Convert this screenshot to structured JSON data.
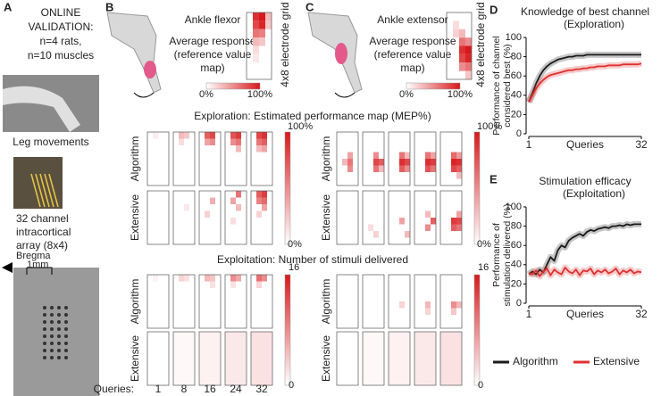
{
  "panel_a": {
    "letter": "A",
    "lines": [
      "ONLINE",
      "VALIDATION:",
      "n=4 rats,",
      "n=10 muscles"
    ],
    "photo_caption": "Leg movements",
    "array_caption": [
      "32 channel",
      "intracortical",
      "array (8x4)"
    ],
    "bregma": "Bregma",
    "scale": "1mm"
  },
  "heatmaps": {
    "exploration_title": "Exploration: Estimated performance map (MEP%)",
    "exploitation_title": "Exploitation: Number of stimuli delivered",
    "row_labels": [
      "Algorithm",
      "Extensive"
    ],
    "queries_label": "Queries:",
    "queries": [
      1,
      8,
      16,
      24,
      32
    ],
    "explore_scale": [
      {
        "value": 0,
        "label": "0%"
      },
      {
        "value": 100,
        "label": "100%"
      }
    ],
    "exploit_scale": [
      0,
      16
    ]
  },
  "panel_b": {
    "letter": "B",
    "muscle": "Ankle flexor",
    "avg": [
      "Average response",
      "(reference value",
      "map)"
    ],
    "grid_label": "4x8 electrode grid",
    "ref_map": [
      [
        0,
        1,
        90
      ],
      [
        0,
        2,
        100
      ],
      [
        1,
        1,
        80
      ],
      [
        1,
        2,
        95
      ],
      [
        2,
        1,
        60
      ],
      [
        2,
        2,
        55
      ],
      [
        3,
        1,
        30
      ],
      [
        3,
        2,
        25
      ],
      [
        0,
        3,
        30
      ],
      [
        1,
        3,
        25
      ],
      [
        4,
        1,
        15
      ],
      [
        5,
        1,
        10
      ]
    ],
    "explore": [
      [
        [
          [
            0,
            1,
            8
          ]
        ],
        [
          [
            0,
            1,
            30
          ],
          [
            0,
            2,
            25
          ],
          [
            1,
            1,
            15
          ]
        ],
        [
          [
            0,
            1,
            70
          ],
          [
            0,
            2,
            80
          ],
          [
            1,
            1,
            40
          ],
          [
            1,
            2,
            50
          ]
        ],
        [
          [
            0,
            1,
            75
          ],
          [
            0,
            2,
            85
          ],
          [
            1,
            1,
            50
          ],
          [
            1,
            2,
            60
          ],
          [
            2,
            2,
            30
          ]
        ],
        [
          [
            0,
            1,
            80
          ],
          [
            0,
            2,
            90
          ],
          [
            1,
            1,
            60
          ],
          [
            1,
            2,
            70
          ],
          [
            2,
            1,
            30
          ],
          [
            2,
            2,
            40
          ]
        ]
      ],
      [
        [],
        [
          [
            2,
            2,
            10
          ]
        ],
        [
          [
            1,
            2,
            35
          ],
          [
            3,
            1,
            20
          ]
        ],
        [
          [
            0,
            2,
            60
          ],
          [
            1,
            1,
            40
          ],
          [
            2,
            2,
            30
          ],
          [
            4,
            1,
            15
          ]
        ],
        [
          [
            0,
            1,
            70
          ],
          [
            0,
            2,
            85
          ],
          [
            1,
            1,
            55
          ],
          [
            1,
            2,
            65
          ],
          [
            2,
            2,
            40
          ],
          [
            3,
            1,
            20
          ]
        ]
      ]
    ],
    "exploit": [
      [
        [
          [
            0,
            1,
            1
          ]
        ],
        [
          [
            0,
            1,
            3
          ],
          [
            0,
            2,
            2
          ]
        ],
        [
          [
            0,
            1,
            5
          ],
          [
            0,
            2,
            4
          ],
          [
            1,
            2,
            2
          ]
        ],
        [
          [
            0,
            1,
            8
          ],
          [
            0,
            2,
            6
          ],
          [
            1,
            1,
            2
          ]
        ],
        [
          [
            0,
            1,
            10
          ],
          [
            0,
            2,
            8
          ],
          [
            1,
            1,
            3
          ]
        ]
      ],
      [
        0,
        0.5,
        1,
        1.5,
        2
      ]
    ]
  },
  "panel_c": {
    "letter": "C",
    "muscle": "Ankle extensor",
    "avg": [
      "Average response",
      "(reference value",
      "map)"
    ],
    "grid_label": "4x8 electrode grid",
    "ref_map": [
      [
        3,
        2,
        60
      ],
      [
        3,
        3,
        50
      ],
      [
        4,
        2,
        90
      ],
      [
        4,
        3,
        100
      ],
      [
        5,
        2,
        80
      ],
      [
        5,
        3,
        95
      ],
      [
        6,
        2,
        50
      ],
      [
        6,
        3,
        60
      ],
      [
        2,
        2,
        30
      ],
      [
        1,
        1,
        15
      ],
      [
        2,
        1,
        20
      ],
      [
        7,
        3,
        25
      ]
    ],
    "explore": [
      [
        [
          [
            4,
            1,
            30
          ],
          [
            4,
            2,
            60
          ],
          [
            3,
            2,
            40
          ],
          [
            5,
            2,
            50
          ]
        ],
        [
          [
            4,
            2,
            80
          ],
          [
            4,
            3,
            70
          ],
          [
            3,
            2,
            50
          ],
          [
            5,
            2,
            60
          ],
          [
            5,
            3,
            30
          ]
        ],
        [
          [
            4,
            2,
            90
          ],
          [
            4,
            3,
            80
          ],
          [
            3,
            2,
            60
          ],
          [
            5,
            2,
            70
          ],
          [
            5,
            3,
            50
          ],
          [
            3,
            3,
            30
          ]
        ],
        [
          [
            4,
            2,
            90
          ],
          [
            4,
            3,
            85
          ],
          [
            3,
            2,
            60
          ],
          [
            5,
            2,
            75
          ],
          [
            5,
            3,
            60
          ],
          [
            3,
            3,
            40
          ]
        ],
        [
          [
            4,
            2,
            95
          ],
          [
            4,
            3,
            90
          ],
          [
            3,
            2,
            65
          ],
          [
            5,
            2,
            80
          ],
          [
            5,
            3,
            70
          ],
          [
            3,
            3,
            45
          ],
          [
            6,
            3,
            30
          ]
        ]
      ],
      [
        [],
        [
          [
            6,
            2,
            20
          ],
          [
            5,
            1,
            15
          ]
        ],
        [
          [
            4,
            2,
            40
          ],
          [
            6,
            3,
            30
          ]
        ],
        [
          [
            4,
            3,
            70
          ],
          [
            5,
            2,
            50
          ],
          [
            3,
            2,
            30
          ]
        ],
        [
          [
            4,
            2,
            85
          ],
          [
            4,
            3,
            80
          ],
          [
            5,
            2,
            70
          ],
          [
            5,
            3,
            60
          ],
          [
            3,
            3,
            40
          ]
        ]
      ]
    ],
    "exploit": [
      [
        [],
        [],
        [
          [
            4,
            2,
            3
          ]
        ],
        [
          [
            4,
            2,
            5
          ],
          [
            5,
            2,
            3
          ]
        ],
        [
          [
            4,
            2,
            8
          ],
          [
            4,
            3,
            5
          ],
          [
            5,
            2,
            4
          ]
        ]
      ],
      [
        0,
        0.5,
        1,
        1.5,
        2
      ]
    ]
  },
  "chart_data": [
    {
      "type": "line",
      "letter": "D",
      "title": "Knowledge of best channel",
      "subtitle": "(Exploration)",
      "ylabel": [
        "Performance of channel",
        "considered best (%)"
      ],
      "xlabel": "Queries",
      "x": [
        1,
        2,
        3,
        4,
        5,
        6,
        7,
        8,
        9,
        10,
        11,
        12,
        13,
        14,
        15,
        16,
        17,
        18,
        19,
        20,
        21,
        22,
        23,
        24,
        25,
        26,
        27,
        28,
        29,
        30,
        31,
        32
      ],
      "xlim": [
        1,
        32
      ],
      "xticks": [
        1,
        32
      ],
      "ylim": [
        0,
        100
      ],
      "yticks": [
        0,
        20,
        40,
        60,
        80,
        100
      ],
      "series": [
        {
          "name": "Algorithm",
          "color": "#1a1a1a",
          "values": [
            33,
            42,
            52,
            60,
            66,
            70,
            73,
            75,
            77,
            78,
            79,
            80,
            80,
            81,
            81,
            81,
            82,
            82,
            82,
            82,
            82,
            82,
            82,
            82,
            82,
            82,
            82,
            82,
            82,
            82,
            82,
            82
          ]
        },
        {
          "name": "Extensive",
          "color": "#e03030",
          "values": [
            33,
            40,
            47,
            52,
            56,
            59,
            61,
            62,
            63,
            64,
            65,
            66,
            66,
            67,
            67,
            68,
            68,
            69,
            69,
            70,
            70,
            70,
            71,
            71,
            71,
            71,
            72,
            72,
            72,
            72,
            72,
            73
          ]
        }
      ]
    },
    {
      "type": "line",
      "letter": "E",
      "title": "Stimulation efficacy",
      "subtitle": "(Exploitation)",
      "ylabel": [
        "Performance of",
        "stimulation delivered (%)"
      ],
      "xlabel": "Queries",
      "x": [
        1,
        2,
        3,
        4,
        5,
        6,
        7,
        8,
        9,
        10,
        11,
        12,
        13,
        14,
        15,
        16,
        17,
        18,
        19,
        20,
        21,
        22,
        23,
        24,
        25,
        26,
        27,
        28,
        29,
        30,
        31,
        32
      ],
      "xlim": [
        1,
        32
      ],
      "xticks": [
        1,
        32
      ],
      "ylim": [
        0,
        100
      ],
      "yticks": [
        0,
        20,
        40,
        60,
        80,
        100
      ],
      "series": [
        {
          "name": "Algorithm",
          "color": "#1a1a1a",
          "values": [
            30,
            33,
            30,
            35,
            32,
            40,
            48,
            44,
            55,
            60,
            58,
            65,
            68,
            70,
            72,
            70,
            74,
            76,
            75,
            77,
            78,
            79,
            78,
            80,
            80,
            81,
            80,
            82,
            81,
            82,
            82,
            82
          ]
        },
        {
          "name": "Extensive",
          "color": "#e03030",
          "values": [
            31,
            30,
            34,
            28,
            33,
            36,
            29,
            35,
            32,
            30,
            37,
            33,
            31,
            35,
            29,
            34,
            33,
            36,
            30,
            34,
            32,
            35,
            31,
            33,
            36,
            30,
            34,
            32,
            35,
            31,
            33,
            32
          ]
        }
      ]
    }
  ]
}
